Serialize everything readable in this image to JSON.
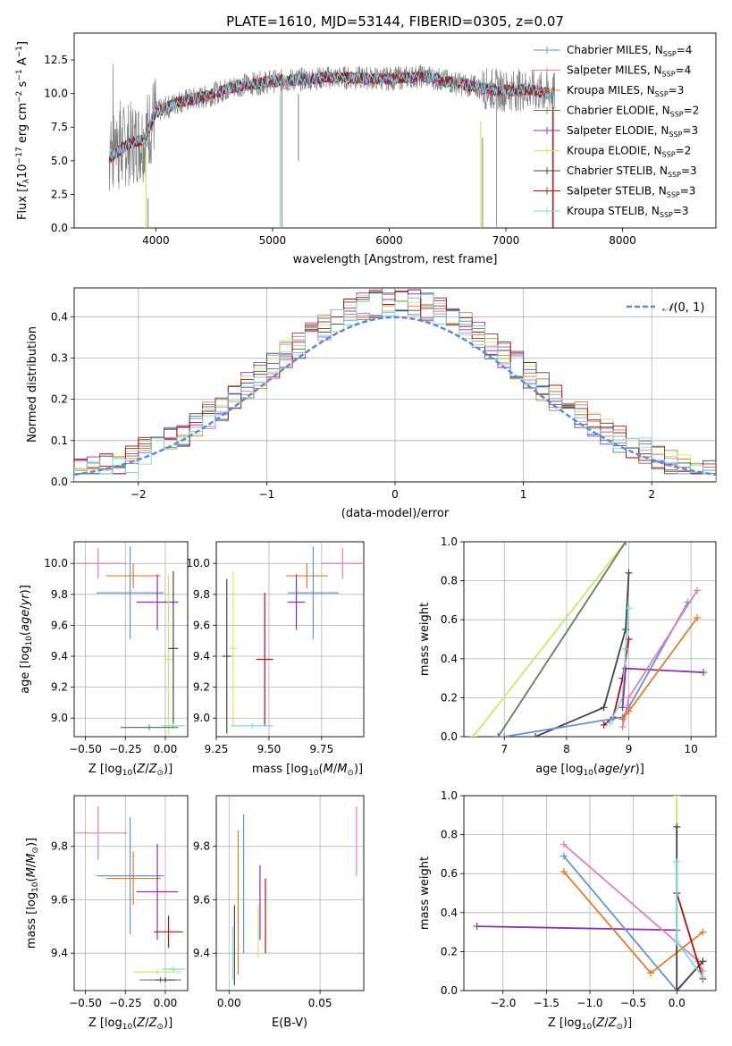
{
  "colors": {
    "chabrier_miles": "#6a8fd6",
    "salpeter_miles": "#e27fbf",
    "kroupa_miles": "#e07b28",
    "chabrier_elodie": "#5f7f5f",
    "salpeter_elodie": "#8f2fa8",
    "kroupa_elodie": "#c8e86a",
    "chabrier_stelib": "#444444",
    "salpeter_stelib": "#aa1111",
    "kroupa_stelib": "#7fd9dc"
  },
  "chart_data": [
    {
      "type": "line",
      "title": "PLATE=1610, MJD=53144, FIBERID=0305, z=0.07",
      "xlabel": "wavelength [Angstrom, rest frame]",
      "ylabel": "Flux [f_λ10^-17 erg cm^-2 s^-1 A^-1]",
      "xlim": [
        3300,
        8800
      ],
      "ylim": [
        0,
        14.5
      ],
      "xticks": [
        "4000",
        "5000",
        "6000",
        "7000",
        "8000"
      ],
      "yticks": [
        "0.0",
        "2.5",
        "5.0",
        "7.5",
        "10.0",
        "12.5"
      ],
      "legend_position": "top-right",
      "legend": [
        {
          "name": "Chabrier MILES, N_SSP=4",
          "base": "Chabrier MILES, N",
          "sub": "SSP",
          "tail": "=4",
          "color": "chabrier_miles"
        },
        {
          "name": "Salpeter MILES, N_SSP=4",
          "base": "Salpeter MILES, N",
          "sub": "SSP",
          "tail": "=4",
          "color": "salpeter_miles"
        },
        {
          "name": "Kroupa MILES, N_SSP=3",
          "base": "Kroupa MILES, N",
          "sub": "SSP",
          "tail": "=3",
          "color": "kroupa_miles"
        },
        {
          "name": "Chabrier ELODIE, N_SSP=2",
          "base": "Chabrier ELODIE, N",
          "sub": "SSP",
          "tail": "=2",
          "color": "chabrier_elodie"
        },
        {
          "name": "Salpeter ELODIE, N_SSP=3",
          "base": "Salpeter ELODIE, N",
          "sub": "SSP",
          "tail": "=3",
          "color": "salpeter_elodie"
        },
        {
          "name": "Kroupa ELODIE, N_SSP=2",
          "base": "Kroupa ELODIE, N",
          "sub": "SSP",
          "tail": "=2",
          "color": "kroupa_elodie"
        },
        {
          "name": "Chabrier STELIB, N_SSP=3",
          "base": "Chabrier STELIB, N",
          "sub": "SSP",
          "tail": "=3",
          "color": "chabrier_stelib"
        },
        {
          "name": "Salpeter STELIB, N_SSP=3",
          "base": "Salpeter STELIB, N",
          "sub": "SSP",
          "tail": "=3",
          "color": "salpeter_stelib"
        },
        {
          "name": "Kroupa STELIB, N_SSP=3",
          "base": "Kroupa STELIB, N",
          "sub": "SSP",
          "tail": "=3",
          "color": "kroupa_stelib"
        }
      ],
      "spectrum_shape": [
        [
          3600,
          5.2
        ],
        [
          3750,
          6.2
        ],
        [
          3900,
          6.6
        ],
        [
          4000,
          8.6
        ],
        [
          4200,
          9.4
        ],
        [
          4400,
          9.7
        ],
        [
          4700,
          10.6
        ],
        [
          5000,
          10.9
        ],
        [
          5500,
          11.2
        ],
        [
          6000,
          11.1
        ],
        [
          6300,
          11.3
        ],
        [
          6500,
          10.9
        ],
        [
          6800,
          10.4
        ],
        [
          7000,
          10.2
        ],
        [
          7200,
          10.3
        ],
        [
          7300,
          10.1
        ],
        [
          7420,
          10.0
        ]
      ],
      "absorption_features": [
        [
          3933,
          2.2
        ],
        [
          5080,
          10.7
        ],
        [
          6800,
          6.7
        ],
        [
          7400,
          10.0
        ]
      ]
    },
    {
      "type": "bar",
      "xlabel": "(data-model)/error",
      "ylabel": "Normed distribution",
      "xlim": [
        -2.5,
        2.5
      ],
      "ylim": [
        0,
        0.47
      ],
      "xticks": [
        "−2",
        "−1",
        "0",
        "1",
        "2"
      ],
      "yticks": [
        "0.0",
        "0.1",
        "0.2",
        "0.3",
        "0.4"
      ],
      "legend_position": "top-right",
      "reference_label": "N(0,1)",
      "bin_width": 0.1,
      "bin_start": -2.5,
      "series_color": [
        "chabrier_miles",
        "salpeter_miles",
        "kroupa_miles",
        "chabrier_elodie",
        "salpeter_elodie",
        "kroupa_elodie",
        "chabrier_stelib",
        "salpeter_stelib",
        "kroupa_stelib"
      ]
    },
    {
      "type": "scatter",
      "xlabel": "Z [log10(Z/Z⊙)]",
      "ylabel": "age [log10(age/yr)]",
      "xlim": [
        -0.57,
        0.14
      ],
      "ylim": [
        8.88,
        10.14
      ],
      "xticks": [
        "−0.50",
        "−0.25",
        "0.00"
      ],
      "yticks": [
        "9.0",
        "9.2",
        "9.4",
        "9.6",
        "9.8",
        "10.0"
      ],
      "crosses": [
        {
          "color": "salpeter_miles",
          "x": -0.42,
          "xerr": 0.18,
          "y": 10.0,
          "yerr": 0.1
        },
        {
          "color": "kroupa_miles",
          "x": -0.2,
          "xerr": 0.17,
          "y": 9.92,
          "yerr": 0.08
        },
        {
          "color": "chabrier_miles",
          "x": -0.22,
          "xerr": 0.21,
          "y": 9.81,
          "yerr": 0.3
        },
        {
          "color": "salpeter_elodie",
          "x": -0.05,
          "xerr": 0.13,
          "y": 9.75,
          "yerr": 0.18
        },
        {
          "color": "kroupa_elodie",
          "x": 0.02,
          "xerr": 0.03,
          "y": 9.38,
          "yerr": 0.55
        },
        {
          "color": "chabrier_stelib",
          "x": 0.05,
          "xerr": 0.03,
          "y": 9.45,
          "yerr": 0.5
        },
        {
          "color": "kroupa_stelib",
          "x": 0.05,
          "xerr": 0.07,
          "y": 8.95,
          "yerr": 0.0
        },
        {
          "color": "chabrier_elodie",
          "x": -0.1,
          "xerr": 0.18,
          "y": 8.94,
          "yerr": 0.0
        }
      ]
    },
    {
      "type": "scatter",
      "xlabel": "mass [log10(M/M⊙)]",
      "ylabel": "",
      "xlim": [
        9.25,
        9.95
      ],
      "ylim": [
        8.88,
        10.14
      ],
      "xticks": [
        "9.25",
        "9.50",
        "9.75"
      ],
      "yticks": [
        "9.0",
        "9.2",
        "9.4",
        "9.6",
        "9.8",
        "10.0"
      ],
      "crosses": [
        {
          "color": "salpeter_miles",
          "x": 9.85,
          "xerr": 0.1,
          "y": 10.0,
          "yerr": 0.1
        },
        {
          "color": "kroupa_miles",
          "x": 9.68,
          "xerr": 0.1,
          "y": 9.92,
          "yerr": 0.08
        },
        {
          "color": "chabrier_miles",
          "x": 9.71,
          "xerr": 0.12,
          "y": 9.81,
          "yerr": 0.3
        },
        {
          "color": "salpeter_elodie",
          "x": 9.63,
          "xerr": 0.04,
          "y": 9.75,
          "yerr": 0.18
        },
        {
          "color": "salpeter_stelib",
          "x": 9.48,
          "xerr": 0.04,
          "y": 9.38,
          "yerr": 0.43
        },
        {
          "color": "kroupa_elodie",
          "x": 9.33,
          "xerr": 0.02,
          "y": 9.45,
          "yerr": 0.5
        },
        {
          "color": "chabrier_stelib",
          "x": 9.3,
          "xerr": 0.02,
          "y": 9.4,
          "yerr": 0.5
        },
        {
          "color": "kroupa_stelib",
          "x": 9.42,
          "xerr": 0.1,
          "y": 8.95,
          "yerr": 0.0
        }
      ]
    },
    {
      "type": "line",
      "xlabel": "age [log10(age/yr)]",
      "ylabel": "mass weight",
      "xlim": [
        6.35,
        10.4
      ],
      "ylim": [
        0,
        1.0
      ],
      "xticks": [
        "7",
        "8",
        "9",
        "10"
      ],
      "yticks": [
        "0.0",
        "0.2",
        "0.4",
        "0.6",
        "0.8",
        "1.0"
      ],
      "series": [
        {
          "color": "kroupa_elodie",
          "x": [
            6.5,
            8.95
          ],
          "y": [
            0.0,
            1.0
          ]
        },
        {
          "color": "chabrier_elodie",
          "x": [
            6.9,
            8.95
          ],
          "y": [
            0.0,
            1.0
          ]
        },
        {
          "color": "chabrier_stelib",
          "x": [
            7.5,
            8.6,
            8.95,
            9.0
          ],
          "y": [
            0.0,
            0.15,
            0.55,
            0.84
          ]
        },
        {
          "color": "salpeter_stelib",
          "x": [
            8.6,
            8.75,
            8.9,
            9.0
          ],
          "y": [
            0.06,
            0.1,
            0.3,
            0.5
          ]
        },
        {
          "color": "kroupa_stelib",
          "x": [
            8.7,
            8.9,
            8.95,
            9.0
          ],
          "y": [
            0.07,
            0.2,
            0.45,
            0.66
          ]
        },
        {
          "color": "salpeter_elodie",
          "x": [
            8.9,
            8.95,
            10.2
          ],
          "y": [
            0.15,
            0.35,
            0.33
          ]
        },
        {
          "color": "chabrier_miles",
          "x": [
            7.0,
            8.9,
            9.0,
            9.95
          ],
          "y": [
            0.0,
            0.1,
            0.15,
            0.69
          ]
        },
        {
          "color": "salpeter_miles",
          "x": [
            8.9,
            9.0,
            10.1
          ],
          "y": [
            0.05,
            0.2,
            0.75
          ]
        },
        {
          "color": "kroupa_miles",
          "x": [
            8.9,
            9.0,
            10.1
          ],
          "y": [
            0.09,
            0.13,
            0.61
          ]
        }
      ]
    },
    {
      "type": "scatter",
      "xlabel": "Z [log10(Z/Z⊙)]",
      "ylabel": "mass [log10(M/M⊙)]",
      "xlim": [
        -0.57,
        0.14
      ],
      "ylim": [
        9.26,
        9.99
      ],
      "xticks": [
        "−0.50",
        "−0.25",
        "0.00"
      ],
      "yticks": [
        "9.4",
        "9.6",
        "9.8"
      ],
      "crosses": [
        {
          "color": "salpeter_miles",
          "x": -0.42,
          "xerr": 0.18,
          "y": 9.85,
          "yerr": 0.1
        },
        {
          "color": "chabrier_miles",
          "x": -0.22,
          "xerr": 0.21,
          "y": 9.69,
          "yerr": 0.22
        },
        {
          "color": "kroupa_miles",
          "x": -0.2,
          "xerr": 0.17,
          "y": 9.68,
          "yerr": 0.1
        },
        {
          "color": "salpeter_elodie",
          "x": -0.05,
          "xerr": 0.13,
          "y": 9.63,
          "yerr": 0.18
        },
        {
          "color": "salpeter_stelib",
          "x": 0.02,
          "xerr": 0.09,
          "y": 9.48,
          "yerr": 0.06
        },
        {
          "color": "kroupa_stelib",
          "x": 0.05,
          "xerr": 0.07,
          "y": 9.34,
          "yerr": 0.0
        },
        {
          "color": "kroupa_elodie",
          "x": -0.05,
          "xerr": 0.15,
          "y": 9.33,
          "yerr": 0.0
        },
        {
          "color": "chabrier_elodie",
          "x": -0.03,
          "xerr": 0.13,
          "y": 9.3,
          "yerr": 0.0
        },
        {
          "color": "chabrier_stelib",
          "x": 0.0,
          "xerr": 0.06,
          "y": 9.3,
          "yerr": 0.0
        }
      ]
    },
    {
      "type": "scatter",
      "xlabel": "E(B-V)",
      "ylabel": "",
      "xlim": [
        -0.007,
        0.074
      ],
      "ylim": [
        9.26,
        9.99
      ],
      "xticks": [
        "0.00",
        "0.05"
      ],
      "yticks": [
        "9.4",
        "9.6",
        "9.8"
      ],
      "crosses": [
        {
          "color": "chabrier_stelib",
          "x": 0.003,
          "xerr": 0.0,
          "y": 9.43,
          "yerr": 0.15
        },
        {
          "color": "kroupa_stelib",
          "x": 0.002,
          "xerr": 0.0,
          "y": 9.4,
          "yerr": 0.1
        },
        {
          "color": "kroupa_miles",
          "x": 0.005,
          "xerr": 0.0,
          "y": 9.59,
          "yerr": 0.27
        },
        {
          "color": "chabrier_miles",
          "x": 0.008,
          "xerr": 0.0,
          "y": 9.66,
          "yerr": 0.26
        },
        {
          "color": "salpeter_elodie",
          "x": 0.017,
          "xerr": 0.0,
          "y": 9.59,
          "yerr": 0.14
        },
        {
          "color": "kroupa_elodie",
          "x": 0.016,
          "xerr": 0.0,
          "y": 9.48,
          "yerr": 0.1
        },
        {
          "color": "salpeter_stelib",
          "x": 0.02,
          "xerr": 0.0,
          "y": 9.54,
          "yerr": 0.14
        },
        {
          "color": "salpeter_miles",
          "x": 0.07,
          "xerr": 0.0,
          "y": 9.82,
          "yerr": 0.13
        }
      ]
    },
    {
      "type": "line",
      "xlabel": "Z [log10(Z/Z⊙)]",
      "ylabel": "mass weight",
      "xlim": [
        -2.45,
        0.45
      ],
      "ylim": [
        0,
        1.0
      ],
      "xticks": [
        "−2.0",
        "−1.5",
        "−1.0",
        "−0.5",
        "0.0"
      ],
      "yticks": [
        "0.0",
        "0.2",
        "0.4",
        "0.6",
        "0.8",
        "1.0"
      ],
      "series": [
        {
          "color": "salpeter_elodie",
          "x": [
            -2.3,
            0.0
          ],
          "y": [
            0.33,
            0.31
          ]
        },
        {
          "color": "salpeter_miles",
          "x": [
            -1.3,
            0.25,
            0.3
          ],
          "y": [
            0.75,
            0.15,
            0.1
          ]
        },
        {
          "color": "chabrier_miles",
          "x": [
            -1.3,
            0.0,
            0.3
          ],
          "y": [
            0.69,
            0.0,
            0.15
          ]
        },
        {
          "color": "kroupa_miles",
          "x": [
            -1.3,
            -0.3,
            0.3
          ],
          "y": [
            0.61,
            0.09,
            0.3
          ]
        },
        {
          "color": "kroupa_elodie",
          "x": [
            0.0,
            0.0
          ],
          "y": [
            0.0,
            1.0
          ]
        },
        {
          "color": "chabrier_stelib",
          "x": [
            0.0,
            0.0,
            0.3
          ],
          "y": [
            0.84,
            0.0,
            0.15
          ]
        },
        {
          "color": "salpeter_stelib",
          "x": [
            0.0,
            0.3
          ],
          "y": [
            0.5,
            0.06
          ]
        },
        {
          "color": "kroupa_stelib",
          "x": [
            0.0,
            0.0,
            0.3
          ],
          "y": [
            0.66,
            0.25,
            0.07
          ]
        }
      ]
    }
  ]
}
